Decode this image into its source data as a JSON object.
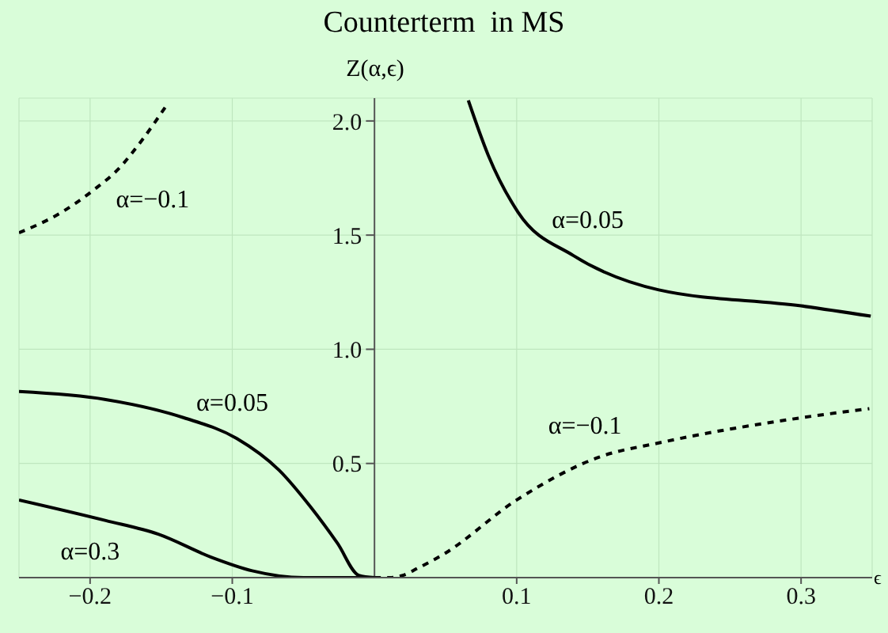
{
  "chart_data": {
    "type": "line",
    "title": "Counterterm  in MS",
    "ylabel": "Z(α,ϵ)",
    "xlabel": "ϵ",
    "xlim": [
      -0.25,
      0.35
    ],
    "xticks": [
      -0.2,
      -0.1,
      0.1,
      0.2,
      0.3
    ],
    "ylim": [
      0,
      2.1
    ],
    "yticks": [
      0.5,
      {
        "value": 1,
        "label": "1.0"
      },
      1.5,
      {
        "value": 2,
        "label": "2.0"
      }
    ],
    "grid": true,
    "marker": "none",
    "series": [
      {
        "name": "α=−0.1",
        "color": "#000000",
        "line_style": "dashed",
        "x": [
          -0.25,
          -0.22,
          -0.197,
          -0.18,
          -0.163,
          -0.145
        ],
        "values": [
          1.51,
          1.6,
          1.7,
          1.79,
          1.92,
          2.08
        ]
      },
      {
        "name": "α=0.05",
        "color": "#000000",
        "line_style": "solid",
        "x": [
          0.066,
          0.08,
          0.101,
          0.14,
          0.2,
          0.3,
          0.349
        ],
        "values": [
          2.09,
          1.85,
          1.6,
          1.41,
          1.26,
          1.19,
          1.145
        ]
      },
      {
        "name": "α=0.05",
        "color": "#000000",
        "line_style": "solid",
        "x": [
          -0.25,
          -0.189,
          -0.134,
          -0.097,
          -0.067,
          -0.045,
          -0.026,
          -0.011,
          0
        ],
        "values": [
          0.815,
          0.78,
          0.7,
          0.61,
          0.47,
          0.31,
          0.15,
          0.01,
          0
        ]
      },
      {
        "name": "α=0.3",
        "color": "#000000",
        "line_style": "solid",
        "x": [
          -0.25,
          -0.189,
          -0.152,
          -0.115,
          -0.086,
          -0.05,
          0
        ],
        "values": [
          0.34,
          0.25,
          0.19,
          0.09,
          0.03,
          0,
          0
        ]
      },
      {
        "name": "α=−0.1",
        "color": "#000000",
        "line_style": "dashed",
        "x": [
          0,
          0.01,
          0.02,
          0.03,
          0.048,
          0.1,
          0.159,
          0.2,
          0.3,
          0.348
        ],
        "values": [
          0,
          0,
          0.01,
          0.04,
          0.1,
          0.34,
          0.53,
          0.59,
          0.7,
          0.74
        ]
      }
    ]
  }
}
